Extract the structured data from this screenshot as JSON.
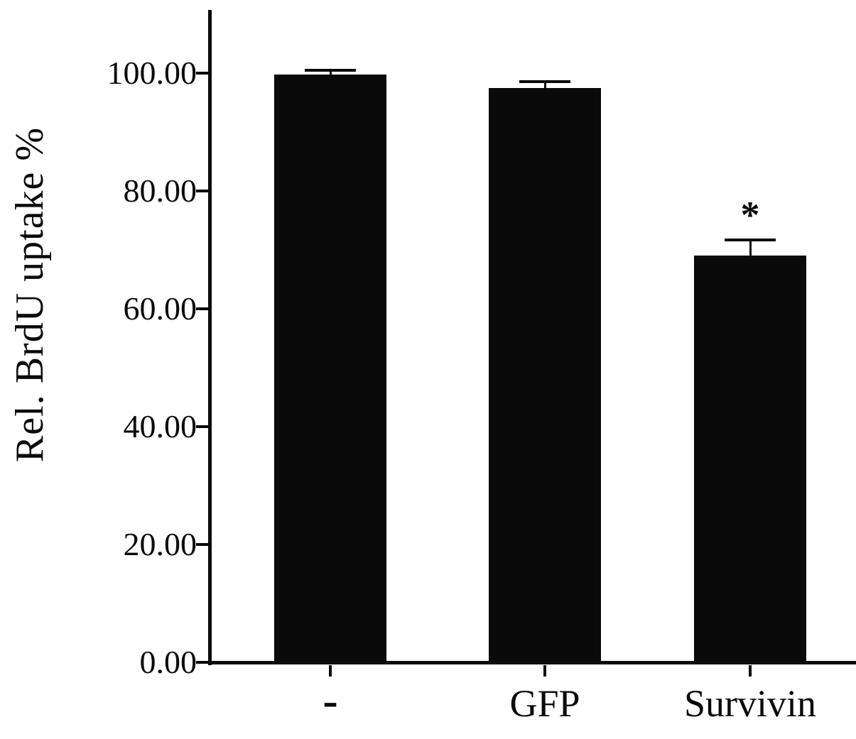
{
  "chart_data": {
    "type": "bar",
    "title": "",
    "xlabel": "",
    "ylabel": "Rel. BrdU uptake %",
    "categories": [
      "-",
      "GFP",
      "Survivin"
    ],
    "values": [
      99.8,
      97.5,
      69.0
    ],
    "errors": [
      0.7,
      1.0,
      2.7
    ],
    "yticks": [
      0,
      20,
      40,
      60,
      80,
      100
    ],
    "ytick_labels": [
      "0.00",
      "20.00",
      "40.00",
      "60.00",
      "80.00",
      "100.00"
    ],
    "ylim": [
      0,
      110
    ],
    "grid": false,
    "legend": "none",
    "bar_color": "#0a0a0a",
    "annotations": [
      {
        "category": "Survivin",
        "text": "*",
        "meaning": "significance-marker"
      }
    ]
  }
}
